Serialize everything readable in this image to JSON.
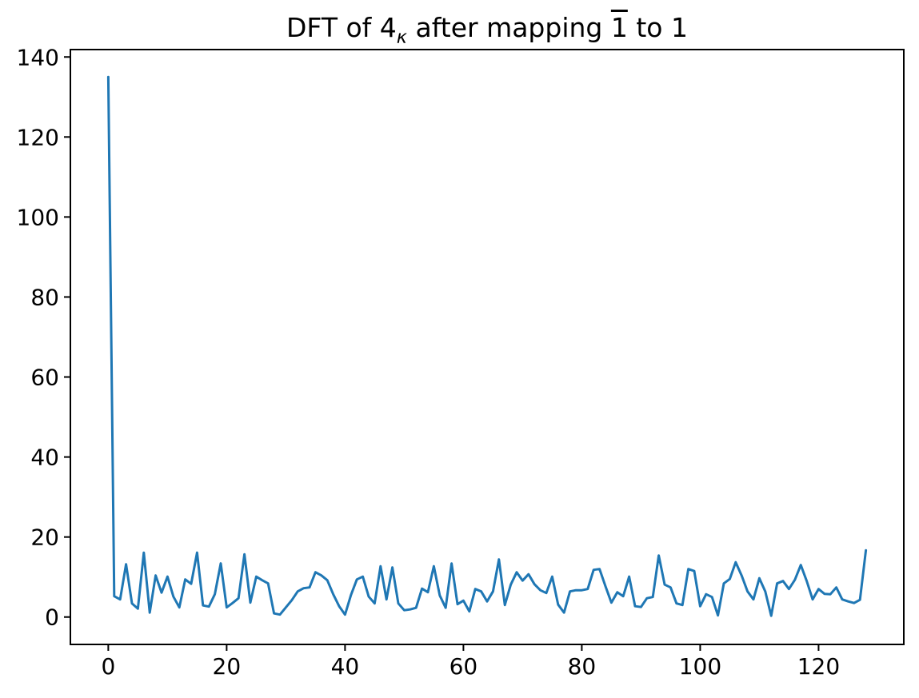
{
  "title": {
    "prefix": "DFT of 4",
    "subscript": "κ",
    "middle": " after mapping ",
    "overlined": "1",
    "suffix": " to 1"
  },
  "chart_data": {
    "type": "line",
    "title": "DFT of 4_κ after mapping 1̄ to 1",
    "xlabel": "",
    "ylabel": "",
    "x_start": 0,
    "x_step": 1,
    "values": [
      135,
      5.2,
      4.4,
      13.2,
      3.4,
      2.1,
      16.1,
      1.1,
      10.4,
      6.1,
      10.1,
      5.1,
      2.4,
      9.4,
      8.3,
      16.1,
      2.9,
      2.6,
      5.7,
      13.4,
      2.4,
      3.5,
      4.7,
      15.7,
      3.6,
      10.1,
      9.2,
      8.4,
      0.9,
      0.6,
      2.4,
      4.2,
      6.4,
      7.2,
      7.4,
      11.2,
      10.4,
      9.2,
      5.7,
      2.7,
      0.6,
      5.5,
      9.4,
      10.1,
      5.1,
      3.4,
      12.7,
      4.4,
      12.4,
      3.4,
      1.7,
      1.9,
      2.3,
      7.1,
      6.2,
      12.7,
      5.4,
      2.3,
      13.4,
      3.2,
      4.1,
      1.4,
      7.0,
      6.4,
      3.9,
      6.4,
      14.4,
      3.0,
      8.1,
      11.2,
      9.1,
      10.7,
      8.2,
      6.7,
      6.0,
      10.1,
      3.1,
      1.1,
      6.4,
      6.7,
      6.7,
      7.0,
      11.8,
      12.0,
      7.7,
      3.6,
      6.2,
      5.2,
      10.1,
      2.7,
      2.5,
      4.7,
      5.0,
      15.4,
      8.1,
      7.4,
      3.4,
      3.0,
      12.0,
      11.5,
      2.7,
      5.7,
      5.0,
      0.4,
      8.4,
      9.5,
      13.7,
      10.4,
      6.4,
      4.4,
      9.7,
      6.4,
      0.3,
      8.4,
      9.0,
      7.0,
      9.3,
      13.0,
      9.0,
      4.4,
      7.0,
      5.8,
      5.7,
      7.4,
      4.4,
      3.9,
      3.5,
      4.3,
      16.7
    ],
    "xlim": [
      -6.4,
      134.4
    ],
    "ylim": [
      -6.85,
      141.85
    ],
    "xticks": [
      0,
      20,
      40,
      60,
      80,
      100,
      120
    ],
    "yticks": [
      0,
      20,
      40,
      60,
      80,
      100,
      120,
      140
    ],
    "line_color": "#1f77b4",
    "axis_color": "#000000",
    "background": "#ffffff",
    "grid": false,
    "legend": "none"
  }
}
